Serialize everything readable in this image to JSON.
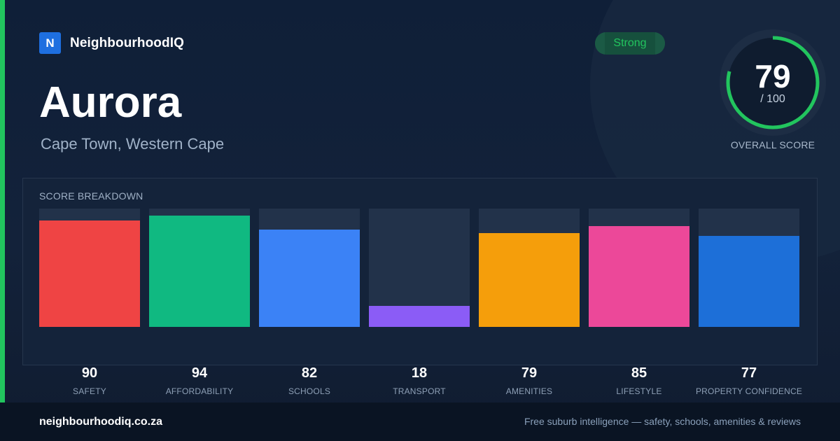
{
  "brand": {
    "logo_letter": "N",
    "name": "NeighbourhoodIQ"
  },
  "location": {
    "title": "Aurora",
    "subtitle": "Cape Town, Western Cape"
  },
  "badge": {
    "label": "Strong",
    "color": "#22c55e"
  },
  "score": {
    "value": "79",
    "max": "/ 100",
    "label": "OVERALL SCORE",
    "fraction": 0.79,
    "ring_color": "#22c55e"
  },
  "breakdown": {
    "title": "SCORE BREAKDOWN",
    "max": 100,
    "items": [
      {
        "label": "SAFETY",
        "value": "90",
        "score": 90,
        "color": "#ef4444"
      },
      {
        "label": "AFFORDABILITY",
        "value": "94",
        "score": 94,
        "color": "#10b981"
      },
      {
        "label": "SCHOOLS",
        "value": "82",
        "score": 82,
        "color": "#3b82f6"
      },
      {
        "label": "TRANSPORT",
        "value": "18",
        "score": 18,
        "color": "#8b5cf6"
      },
      {
        "label": "AMENITIES",
        "value": "79",
        "score": 79,
        "color": "#f59e0b"
      },
      {
        "label": "LIFESTYLE",
        "value": "85",
        "score": 85,
        "color": "#ec4899"
      },
      {
        "label": "PROPERTY CONFIDENCE",
        "value": "77",
        "score": 77,
        "color": "#1d6fd8"
      }
    ]
  },
  "footer": {
    "url": "neighbourhoodiq.co.za",
    "tagline": "Free suburb intelligence — safety, schools, amenities & reviews"
  }
}
